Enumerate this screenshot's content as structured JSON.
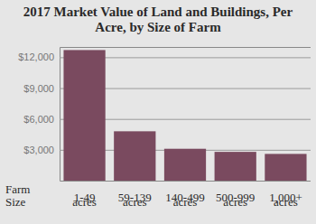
{
  "chart_data": {
    "type": "bar",
    "title": "2017 Market Value of Land and Buildings, Per Acre, by Size of Farm",
    "x_label": "Farm Size",
    "categories": [
      "1-49 acres",
      "59-139 acres",
      "140-499 acres",
      "500-999 acres",
      "1,000+ acres"
    ],
    "values": [
      12700,
      4800,
      3100,
      2800,
      2600
    ],
    "color": "#7a4a5f",
    "ylim": [
      0,
      13000
    ],
    "yticks": [
      {
        "value": 3000,
        "label": "$3,000"
      },
      {
        "value": 6000,
        "label": "$6,000"
      },
      {
        "value": 9000,
        "label": "$9,000"
      },
      {
        "value": 12000,
        "label": "$12,000"
      }
    ],
    "grid": true
  }
}
